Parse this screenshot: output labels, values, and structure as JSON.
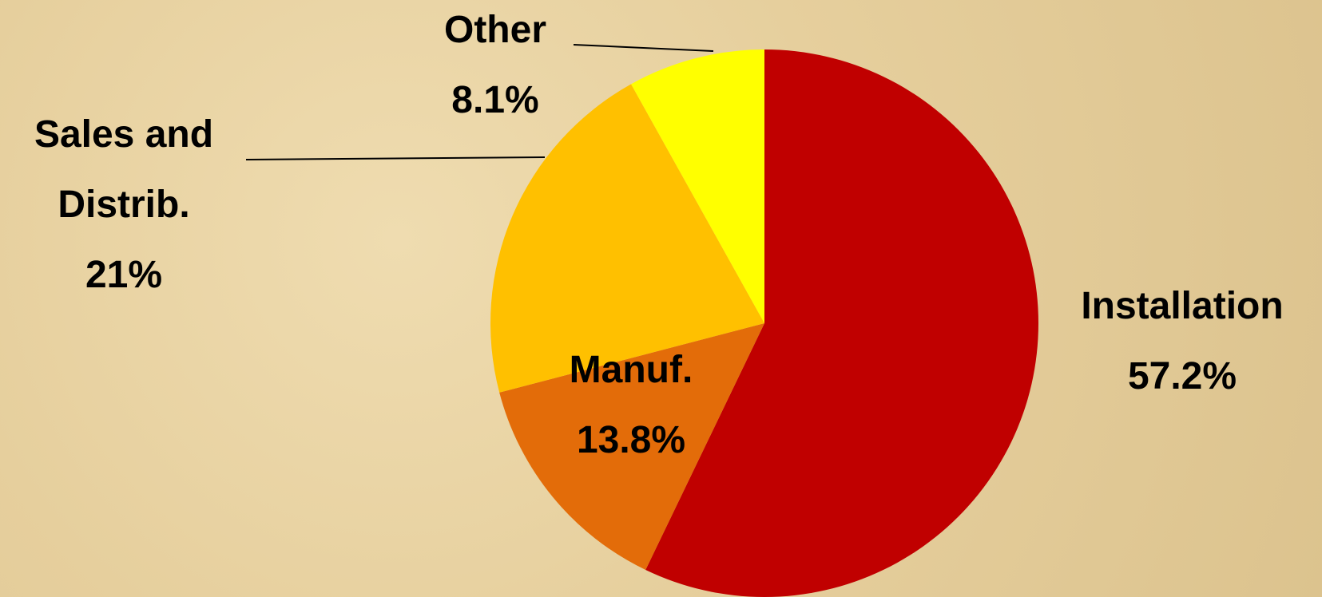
{
  "chart_data": {
    "type": "pie",
    "categories": [
      "Installation",
      "Manuf.",
      "Sales and Distrib.",
      "Other"
    ],
    "values": [
      57.2,
      13.8,
      21,
      8.1
    ],
    "value_labels": [
      "57.2%",
      "13.8%",
      "21%",
      "8.1%"
    ],
    "colors": [
      "#C00000",
      "#E36C09",
      "#FFC000",
      "#FFFF00"
    ]
  }
}
